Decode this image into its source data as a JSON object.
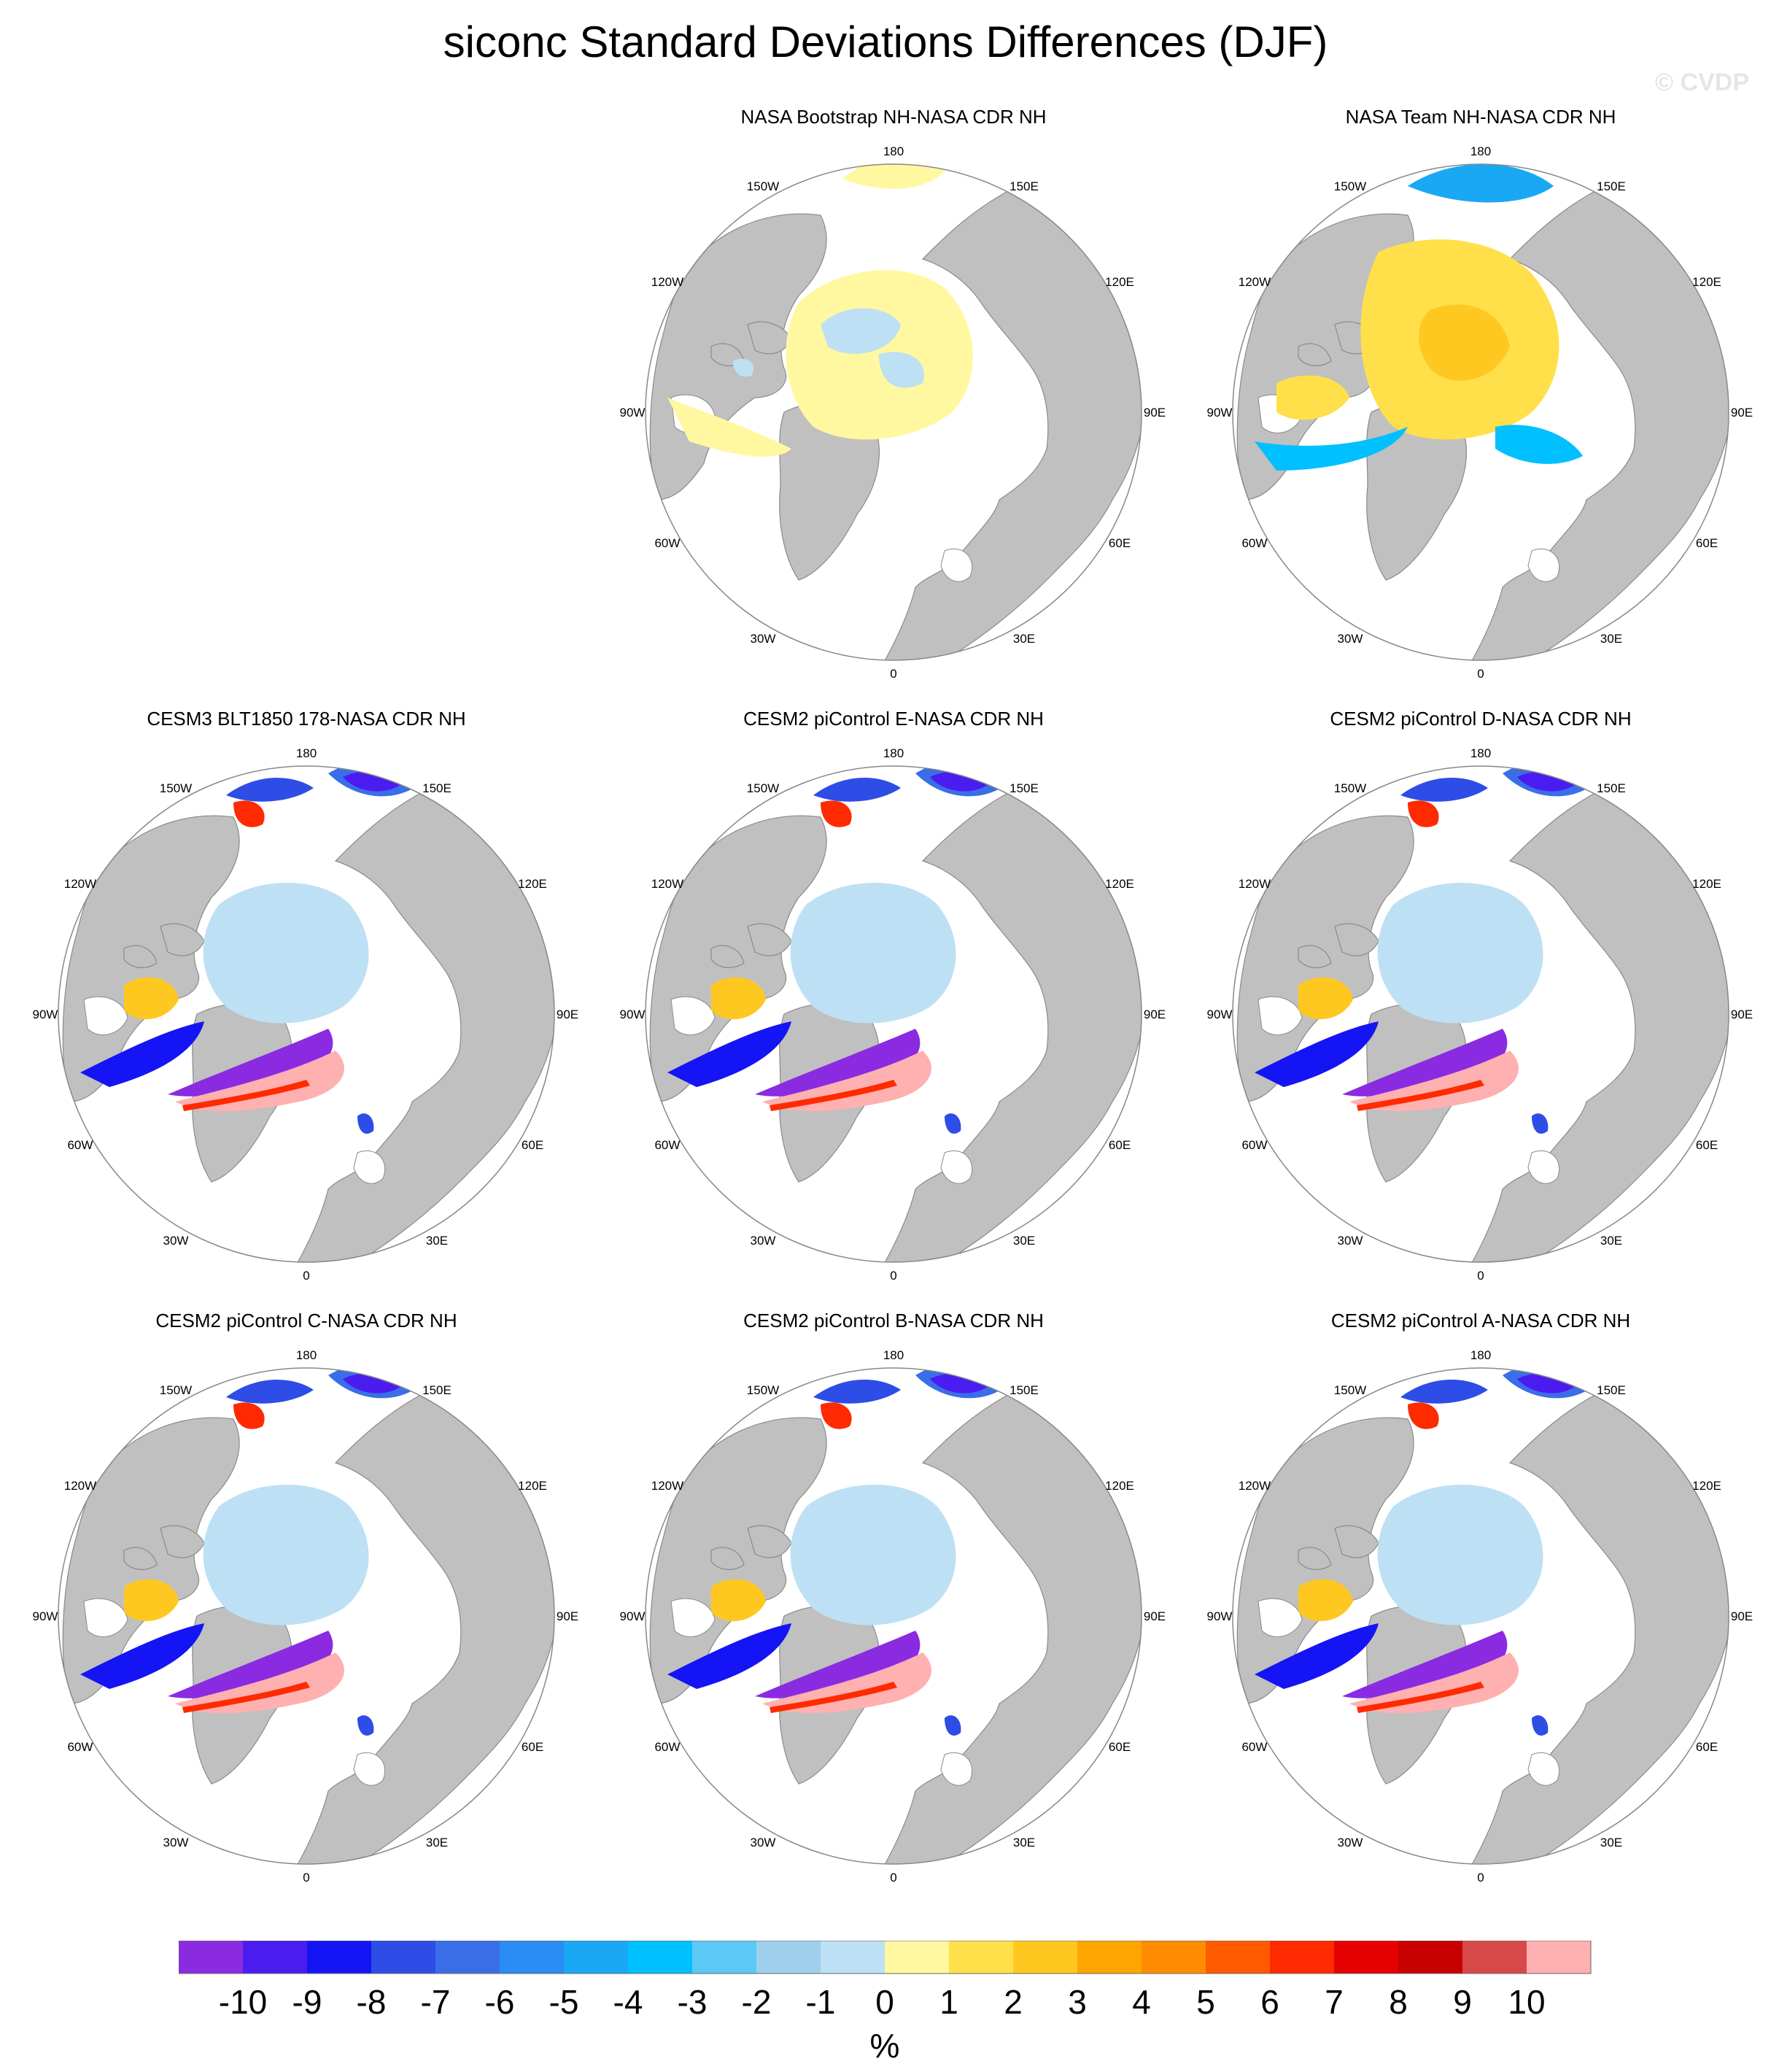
{
  "title": "siconc Standard Deviations Differences (DJF)",
  "watermark": "© CVDP",
  "lon_labels": [
    "180",
    "150E",
    "120E",
    "90E",
    "60E",
    "30E",
    "0",
    "30W",
    "60W",
    "90W",
    "120W",
    "150W"
  ],
  "panels": [
    {
      "title": "NASA Bootstrap NH-NASA CDR NH",
      "row": 0,
      "col": 1,
      "pattern": "bootstrap"
    },
    {
      "title": "NASA Team NH-NASA CDR NH",
      "row": 0,
      "col": 2,
      "pattern": "team"
    },
    {
      "title": "CESM3 BLT1850 178-NASA CDR NH",
      "row": 1,
      "col": 0,
      "pattern": "model"
    },
    {
      "title": "CESM2 piControl E-NASA CDR NH",
      "row": 1,
      "col": 1,
      "pattern": "model"
    },
    {
      "title": "CESM2 piControl D-NASA CDR NH",
      "row": 1,
      "col": 2,
      "pattern": "model"
    },
    {
      "title": "CESM2 piControl C-NASA CDR NH",
      "row": 2,
      "col": 0,
      "pattern": "model"
    },
    {
      "title": "CESM2 piControl B-NASA CDR NH",
      "row": 2,
      "col": 1,
      "pattern": "model"
    },
    {
      "title": "CESM2 piControl A-NASA CDR NH",
      "row": 2,
      "col": 2,
      "pattern": "model"
    }
  ],
  "colorbar": {
    "unit": "%",
    "labels": [
      "-10",
      "-9",
      "-8",
      "-7",
      "-6",
      "-5",
      "-4",
      "-3",
      "-2",
      "-1",
      "0",
      "1",
      "2",
      "3",
      "4",
      "5",
      "6",
      "7",
      "8",
      "9",
      "10"
    ],
    "colors": [
      "#8a2be2",
      "#4b1cf0",
      "#1414f5",
      "#2d4de6",
      "#3a6ee8",
      "#2a8cf5",
      "#1aa8f5",
      "#00c0ff",
      "#5cc8f5",
      "#9ed0ee",
      "#bde0f4",
      "#fff8a0",
      "#ffe04a",
      "#ffc820",
      "#ffa500",
      "#ff8c00",
      "#ff5a00",
      "#ff2a00",
      "#e60000",
      "#c80000",
      "#d94848",
      "#ffb0b0"
    ]
  },
  "map_colors": {
    "land": "#c0c0c0",
    "ocean": "#ffffff",
    "coast": "#8a8a8a"
  }
}
